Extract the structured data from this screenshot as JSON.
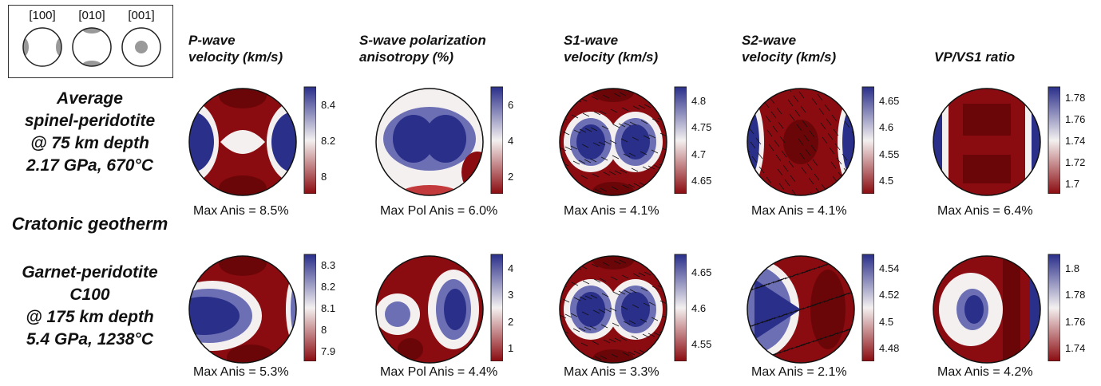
{
  "legend": {
    "labels": [
      "[100]",
      "[010]",
      "[001]"
    ]
  },
  "rows": [
    {
      "label_lines": [
        "Average",
        "spinel-peridotite",
        "@ 75 km depth",
        "2.17 GPa, 670°C"
      ]
    },
    {
      "label_lines": [
        "Garnet-peridotite",
        "C100",
        "@ 175 km depth",
        "5.4 GPa, 1238°C"
      ]
    }
  ],
  "separator_label": "Cratonic geotherm",
  "columns": [
    {
      "title_lines": [
        "P-wave",
        "velocity (km/s)"
      ]
    },
    {
      "title_lines": [
        "S-wave polarization",
        "anisotropy (%)"
      ]
    },
    {
      "title_lines": [
        "S1-wave",
        "velocity (km/s)"
      ]
    },
    {
      "title_lines": [
        "S2-wave",
        "velocity (km/s)"
      ]
    },
    {
      "title_lines": [
        "VP/VS1 ratio"
      ]
    }
  ],
  "panels": [
    [
      {
        "max_text": "Max Anis = 8.5%",
        "ticks": [
          "8.4",
          "8.2",
          "8"
        ],
        "pattern": "pwave"
      },
      {
        "max_text": "Max Pol Anis = 6.0%",
        "ticks": [
          "6",
          "4",
          "2"
        ],
        "pattern": "swpol"
      },
      {
        "max_text": "Max Anis = 4.1%",
        "ticks": [
          "4.8",
          "4.75",
          "4.7",
          "4.65"
        ],
        "pattern": "s1"
      },
      {
        "max_text": "Max Anis = 4.1%",
        "ticks": [
          "4.65",
          "4.6",
          "4.55",
          "4.5"
        ],
        "pattern": "s2"
      },
      {
        "max_text": "Max Anis = 6.4%",
        "ticks": [
          "1.78",
          "1.76",
          "1.74",
          "1.72",
          "1.7"
        ],
        "pattern": "vpvs"
      }
    ],
    [
      {
        "max_text": "Max Anis = 5.3%",
        "ticks": [
          "8.3",
          "8.2",
          "8.1",
          "8",
          "7.9"
        ],
        "pattern": "pwave2"
      },
      {
        "max_text": "Max Pol Anis = 4.4%",
        "ticks": [
          "4",
          "3",
          "2",
          "1"
        ],
        "pattern": "swpol2"
      },
      {
        "max_text": "Max Anis = 3.3%",
        "ticks": [
          "4.65",
          "4.6",
          "4.55"
        ],
        "pattern": "s1b"
      },
      {
        "max_text": "Max Anis = 2.1%",
        "ticks": [
          "4.54",
          "4.52",
          "4.5",
          "4.48"
        ],
        "pattern": "s2b"
      },
      {
        "max_text": "Max Anis = 4.2%",
        "ticks": [
          "1.8",
          "1.78",
          "1.76",
          "1.74"
        ],
        "pattern": "vpvs2"
      }
    ]
  ],
  "colors": {
    "blue": "#2a2f8a",
    "red": "#8a0b10",
    "white": "#f4f0f0"
  }
}
